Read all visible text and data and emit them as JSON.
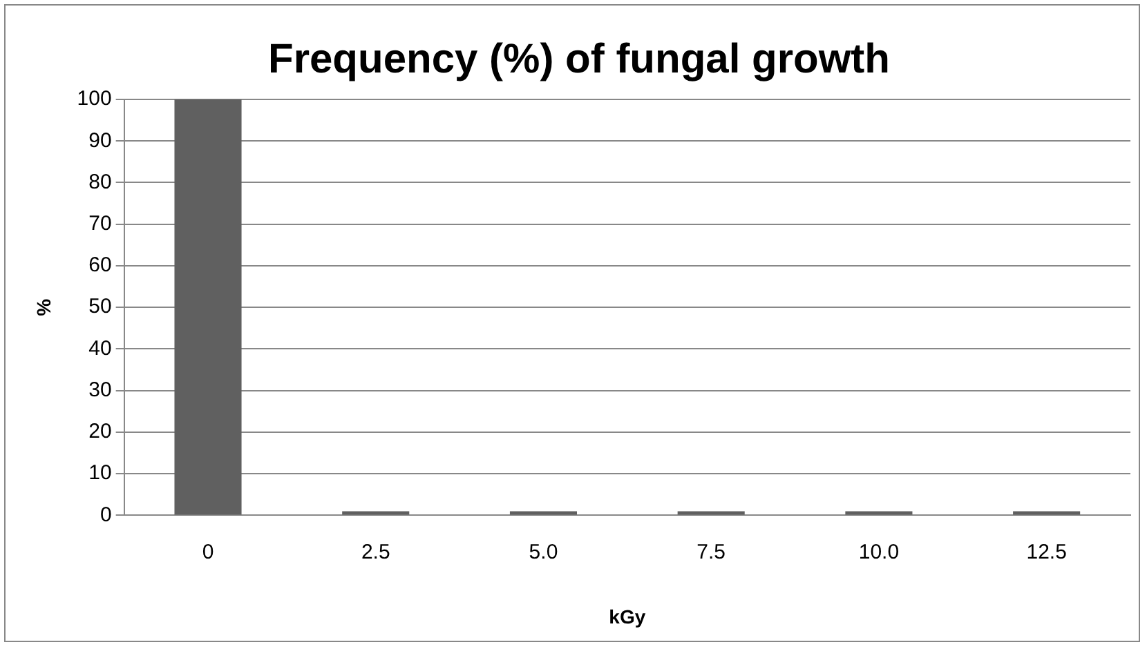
{
  "chart_data": {
    "type": "bar",
    "title": "Frequency (%) of fungal growth",
    "xlabel": "kGy",
    "ylabel": "%",
    "categories": [
      "0",
      "2.5",
      "5.0",
      "7.5",
      "10.0",
      "12.5"
    ],
    "values": [
      100,
      1,
      1,
      1,
      1,
      1
    ],
    "color": "#606060",
    "ylim": [
      0,
      100
    ],
    "yticks": [
      0,
      10,
      20,
      30,
      40,
      50,
      60,
      70,
      80,
      90,
      100
    ],
    "grid": "y",
    "legend": false
  }
}
